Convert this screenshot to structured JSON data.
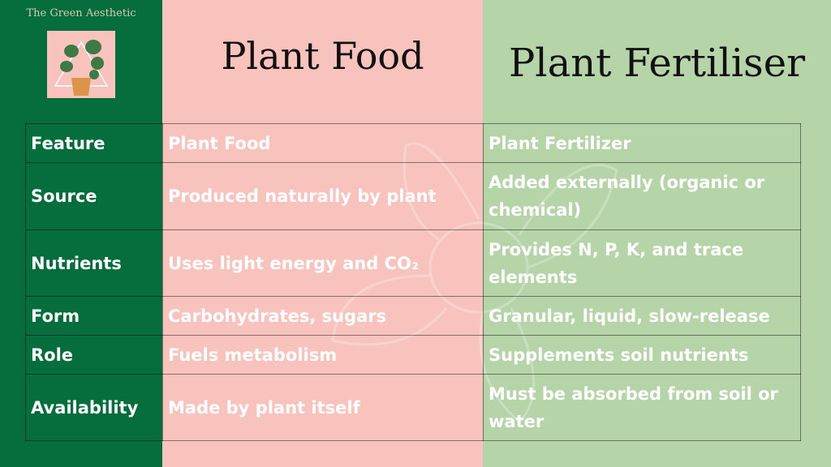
{
  "brand": "The Green Aesthetic",
  "titles": {
    "food": "Plant Food",
    "fertiliser": "Plant Fertiliser"
  },
  "colors": {
    "dark_green": "#066e3c",
    "pink": "#f9c3bd",
    "light_green": "#b5d5a8"
  },
  "table": {
    "rows": [
      [
        "Feature",
        "Plant Food",
        "Plant Fertilizer"
      ],
      [
        "Source",
        "Produced naturally by plant",
        "Added externally (organic or chemical)"
      ],
      [
        "Nutrients",
        "Uses light energy and CO₂",
        "Provides N, P, K, and trace elements"
      ],
      [
        "Form",
        "Carbohydrates, sugars",
        "Granular, liquid, slow-release"
      ],
      [
        "Role",
        "Fuels metabolism",
        "Supplements soil nutrients"
      ],
      [
        "Availability",
        "Made by plant itself",
        "Must be absorbed from soil or water"
      ]
    ]
  }
}
